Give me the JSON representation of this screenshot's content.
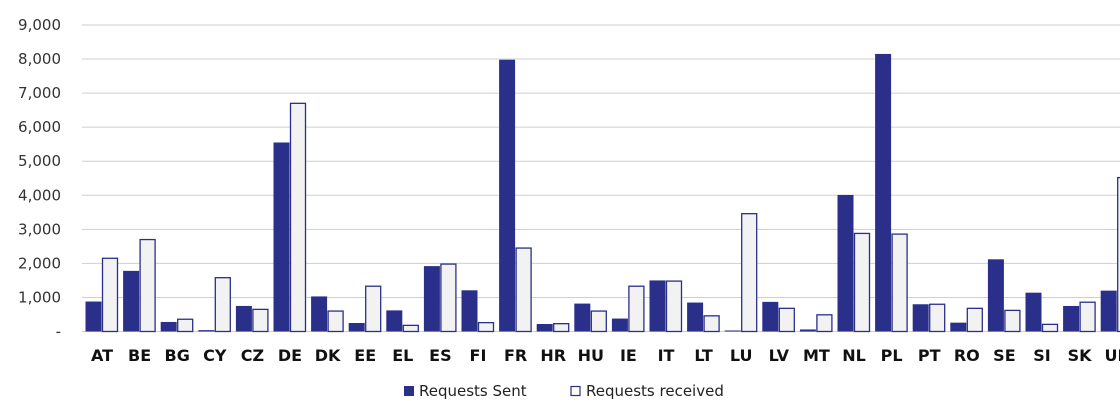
{
  "chart_data": {
    "type": "bar",
    "title": "",
    "xlabel": "",
    "ylabel": "",
    "ylim": [
      0,
      9000
    ],
    "y_ticks": [
      0,
      1000,
      2000,
      3000,
      4000,
      5000,
      6000,
      7000,
      8000,
      9000
    ],
    "y_tick_labels": [
      "-",
      "1,000",
      "2,000",
      "3,000",
      "4,000",
      "5,000",
      "6,000",
      "7,000",
      "8,000",
      "9,000"
    ],
    "grid": true,
    "legend_position": "bottom-center",
    "categories": [
      "AT",
      "BE",
      "BG",
      "CY",
      "CZ",
      "DE",
      "DK",
      "EE",
      "EL",
      "ES",
      "FI",
      "FR",
      "HR",
      "HU",
      "IE",
      "IT",
      "LT",
      "LU",
      "LV",
      "MT",
      "NL",
      "PL",
      "PT",
      "RO",
      "SE",
      "SI",
      "SK",
      "UK"
    ],
    "series": [
      {
        "name": "Requests Sent",
        "color": "#2a2f8a",
        "values": [
          880,
          1780,
          280,
          40,
          750,
          5550,
          1030,
          250,
          620,
          1920,
          1210,
          7980,
          220,
          820,
          380,
          1500,
          850,
          30,
          870,
          60,
          4010,
          8150,
          800,
          260,
          2120,
          1140,
          750,
          1200
        ]
      },
      {
        "name": "Requests received",
        "color": "#f2f2f2",
        "stroke": "#2a2f8a",
        "values": [
          2150,
          2700,
          360,
          1580,
          650,
          6700,
          600,
          1330,
          180,
          1980,
          260,
          2450,
          230,
          600,
          1330,
          1480,
          460,
          3460,
          680,
          490,
          2880,
          2860,
          800,
          680,
          620,
          210,
          860,
          4520
        ]
      }
    ]
  }
}
